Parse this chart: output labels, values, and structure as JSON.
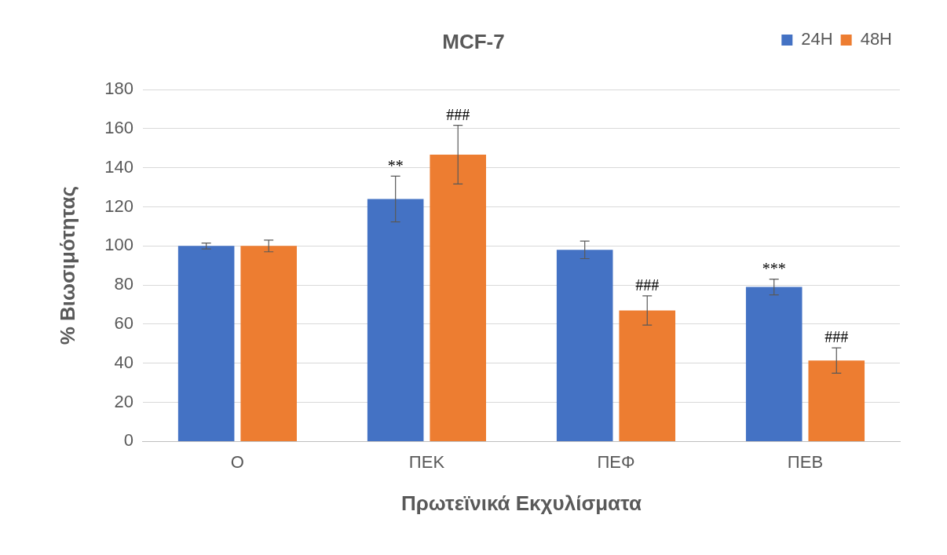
{
  "chart_data": {
    "type": "bar",
    "title": "MCF-7",
    "xlabel": "Πρωτεϊνικά Εκχυλίσματα",
    "ylabel": "% Βιωσιμότητας",
    "categories": [
      "Ο",
      "ΠΕΚ",
      "ΠΕΦ",
      "ΠΕΒ"
    ],
    "series": [
      {
        "name": "24H",
        "color": "#4472c4",
        "values": [
          100,
          124,
          98,
          79
        ],
        "errors": [
          1.5,
          11.7,
          4.5,
          4
        ]
      },
      {
        "name": "48H",
        "color": "#ed7d31",
        "values": [
          100,
          146.7,
          67,
          41.4
        ],
        "errors": [
          3,
          15,
          7.5,
          6.5
        ]
      }
    ],
    "ylim": [
      0,
      180
    ],
    "yticks": [
      0,
      20,
      40,
      60,
      80,
      100,
      120,
      140,
      160,
      180
    ],
    "grid": "y",
    "legend": "top right",
    "annotations": [
      {
        "text": "**",
        "x": "ΠΕΚ",
        "y": 124
      },
      {
        "text": "###",
        "x": "ΠΕΚ",
        "y": 146.7
      },
      {
        "text": "###",
        "x": "ΠΕΦ",
        "y": 67
      },
      {
        "text": "***",
        "x": "ΠΕΒ",
        "y": 79
      },
      {
        "text": "###",
        "x": "ΠΕΒ",
        "y": 41.4
      }
    ]
  }
}
